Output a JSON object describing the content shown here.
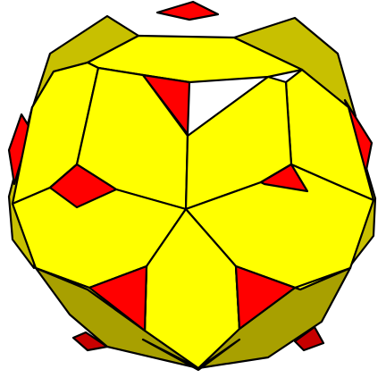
{
  "figure": {
    "subject": "polyhedron",
    "colors": {
      "background": "#ffffff",
      "front_face": "#ffff00",
      "side_face": "#c8c000",
      "side_face_dark": "#a8a000",
      "triangle_face": "#ff0000",
      "triangle_face_dark": "#c80000",
      "edge": "#000000"
    }
  }
}
